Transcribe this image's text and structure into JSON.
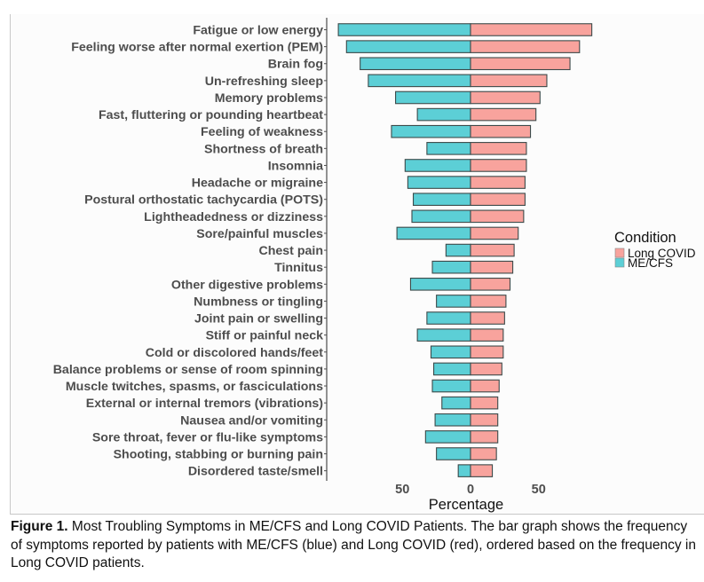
{
  "chart_data": {
    "type": "bar",
    "orientation": "horizontal-diverging",
    "title": "",
    "xlabel": "Percentage",
    "ylabel": "",
    "xlim": [
      -100,
      100
    ],
    "x_ticks": [
      {
        "value": -50,
        "label": "50"
      },
      {
        "value": 0,
        "label": "0"
      },
      {
        "value": 50,
        "label": "50"
      }
    ],
    "grid": false,
    "legend_position": "right",
    "legend": {
      "title": "Condition",
      "entries": [
        {
          "name": "Long COVID",
          "color": "#f8a39d"
        },
        {
          "name": "ME/CFS",
          "color": "#5ccfd6"
        }
      ]
    },
    "categories": [
      "Fatigue or low energy",
      "Feeling worse after normal exertion (PEM)",
      "Brain fog",
      "Un-refreshing sleep",
      "Memory problems",
      "Fast, fluttering or pounding heartbeat",
      "Feeling of weakness",
      "Shortness of breath",
      "Insomnia",
      "Headache or migraine",
      "Postural orthostatic tachycardia (POTS)",
      "Lightheadedness or dizziness",
      "Sore/painful muscles",
      "Chest pain",
      "Tinnitus",
      "Other digestive problems",
      "Numbness or tingling",
      "Joint pain or swelling",
      "Stiff or painful neck",
      "Cold or discolored hands/feet",
      "Balance problems or sense of room spinning",
      "Muscle twitches, spasms, or fasciculations",
      "External or internal tremors (vibrations)",
      "Nausea and/or vomiting",
      "Sore throat, fever or flu-like symptoms",
      "Shooting, stabbing or burning pain",
      "Disordered taste/smell"
    ],
    "series": [
      {
        "name": "ME/CFS",
        "direction": "left",
        "color": "#5ccfd6",
        "values": [
          97,
          91,
          81,
          75,
          55,
          39,
          58,
          32,
          48,
          46,
          42,
          43,
          54,
          18,
          28,
          44,
          25,
          32,
          39,
          29,
          27,
          28,
          21,
          26,
          33,
          25,
          9
        ]
      },
      {
        "name": "Long COVID",
        "direction": "right",
        "color": "#f8a39d",
        "values": [
          89,
          80,
          73,
          56,
          51,
          48,
          44,
          41,
          41,
          40,
          40,
          39,
          35,
          32,
          31,
          29,
          26,
          25,
          24,
          24,
          23,
          21,
          20,
          20,
          20,
          19,
          16
        ]
      }
    ]
  },
  "caption": {
    "label": "Figure 1.",
    "text": " Most Troubling Symptoms in ME/CFS and Long COVID Patients. The bar graph shows the frequency of symptoms reported by patients with ME/CFS (blue) and Long COVID (red), ordered based on the frequency in Long COVID patients."
  }
}
